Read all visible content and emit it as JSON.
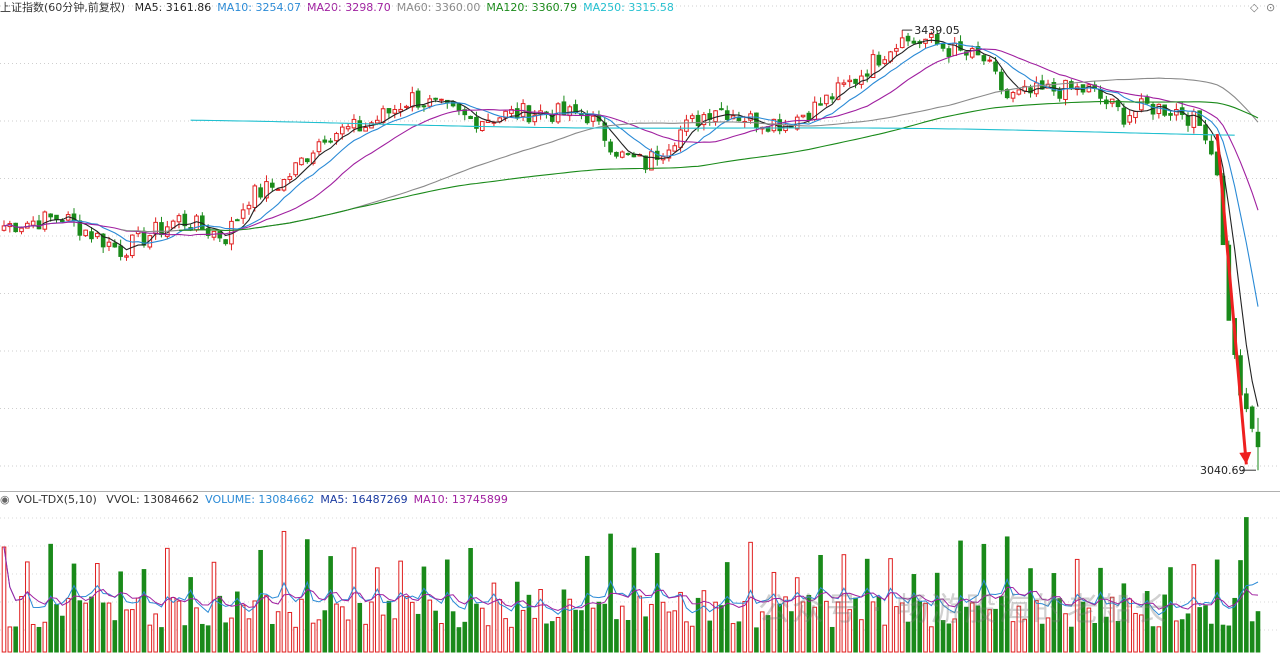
{
  "price_legend": {
    "title": "上证指数(60分钟,前复权)",
    "items": [
      {
        "label": "MA5: 3161.86",
        "color": "#222222"
      },
      {
        "label": "MA10: 3254.07",
        "color": "#2a8ad6"
      },
      {
        "label": "MA20: 3298.70",
        "color": "#a020a0"
      },
      {
        "label": "MA60: 3360.00",
        "color": "#8a8a8a"
      },
      {
        "label": "MA120: 3360.79",
        "color": "#1a8a1a"
      },
      {
        "label": "MA250: 3315.58",
        "color": "#22c0d0"
      }
    ]
  },
  "volume_legend": {
    "title": "VOL-TDX(5,10)",
    "items": [
      {
        "label": "VVOL: 13084662",
        "color": "#333333"
      },
      {
        "label": "VOLUME: 13084662",
        "color": "#2a8ad6"
      },
      {
        "label": "MA5: 16487269",
        "color": "#1a3aa0"
      },
      {
        "label": "MA10: 13745899",
        "color": "#a020a0"
      }
    ]
  },
  "annotations": {
    "high": "3439.05",
    "low": "3040.69"
  },
  "watermark": "公众号 · 畅游股海的老船长",
  "chart_data": {
    "type": "candlestick",
    "ylim": [
      3030,
      3450
    ],
    "high": 3439.05,
    "low": 3040.69,
    "anchors": [
      [
        0,
        3262
      ],
      [
        10,
        3270
      ],
      [
        20,
        3240
      ],
      [
        30,
        3268
      ],
      [
        38,
        3252
      ],
      [
        42,
        3288
      ],
      [
        48,
        3302
      ],
      [
        55,
        3345
      ],
      [
        62,
        3352
      ],
      [
        70,
        3378
      ],
      [
        80,
        3358
      ],
      [
        90,
        3365
      ],
      [
        100,
        3362
      ],
      [
        106,
        3325
      ],
      [
        110,
        3318
      ],
      [
        116,
        3348
      ],
      [
        122,
        3370
      ],
      [
        128,
        3358
      ],
      [
        134,
        3355
      ],
      [
        140,
        3372
      ],
      [
        146,
        3395
      ],
      [
        152,
        3425
      ],
      [
        158,
        3430
      ],
      [
        164,
        3418
      ],
      [
        168,
        3412
      ],
      [
        172,
        3378
      ],
      [
        180,
        3385
      ],
      [
        186,
        3385
      ],
      [
        192,
        3362
      ],
      [
        196,
        3370
      ],
      [
        202,
        3366
      ],
      [
        206,
        3348
      ],
      [
        208,
        3310
      ],
      [
        210,
        3178
      ],
      [
        212,
        3110
      ],
      [
        214,
        3078
      ],
      [
        215,
        3058
      ]
    ],
    "candle_count": 216,
    "volume_ylim": [
      0,
      150
    ],
    "last_volume": 13084662
  }
}
